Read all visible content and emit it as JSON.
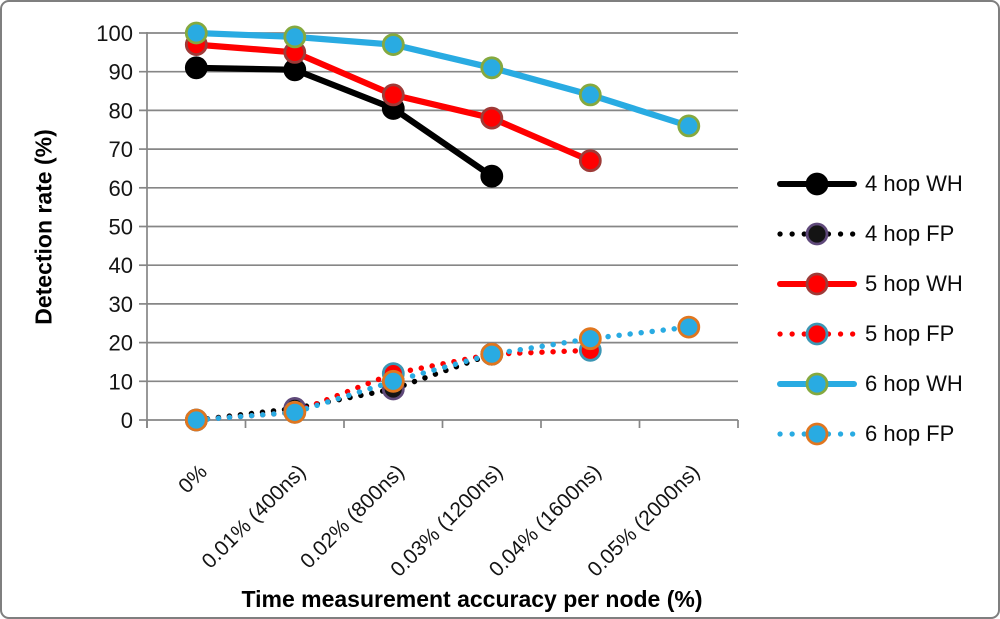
{
  "frame": {
    "background_color": "#FFFFFF",
    "border_color": "#7F7F7F",
    "gridline_color": "#868686"
  },
  "chart_data": {
    "type": "line",
    "title": "",
    "xlabel": "Time measurement accuracy per node (%)",
    "ylabel": "Detection rate (%)",
    "categories": [
      "0%",
      "0.01% (400ns)",
      "0.02% (800ns)",
      "0.03% (1200ns)",
      "0.04% (1600ns)",
      "0.05% (2000ns)"
    ],
    "yticks": [
      0,
      10,
      20,
      30,
      40,
      50,
      60,
      70,
      80,
      90,
      100
    ],
    "ylim": [
      0,
      100
    ],
    "grid": true,
    "legend_position": "right",
    "series": [
      {
        "name": "4 hop WH",
        "style": "solid",
        "line_color": "#000000",
        "marker_fill": "#000000",
        "marker_border": "#000000",
        "values": [
          91,
          90.5,
          80.5,
          63,
          null,
          null
        ]
      },
      {
        "name": "4 hop FP",
        "style": "dotted",
        "line_color": "#000000",
        "marker_fill": "#141414",
        "marker_border": "#5F497A",
        "values": [
          0,
          3,
          8,
          17,
          null,
          null
        ]
      },
      {
        "name": "5 hop WH",
        "style": "solid",
        "line_color": "#FF0000",
        "marker_fill": "#FF0000",
        "marker_border": "#9E3B38",
        "values": [
          97,
          95,
          84,
          78,
          67,
          null
        ]
      },
      {
        "name": "5 hop FP",
        "style": "dotted",
        "line_color": "#FF0000",
        "marker_fill": "#FF0000",
        "marker_border": "#3C96B4",
        "values": [
          0,
          2,
          12,
          17,
          18,
          null
        ]
      },
      {
        "name": "6 hop WH",
        "style": "solid",
        "line_color": "#29ABE2",
        "marker_fill": "#29ABE2",
        "marker_border": "#85A93F",
        "values": [
          100,
          99,
          97,
          91,
          84,
          76
        ]
      },
      {
        "name": "6 hop FP",
        "style": "dotted",
        "line_color": "#29ABE2",
        "marker_fill": "#29ABE2",
        "marker_border": "#E0761F",
        "values": [
          0,
          2,
          10,
          17,
          21,
          24
        ]
      }
    ]
  }
}
